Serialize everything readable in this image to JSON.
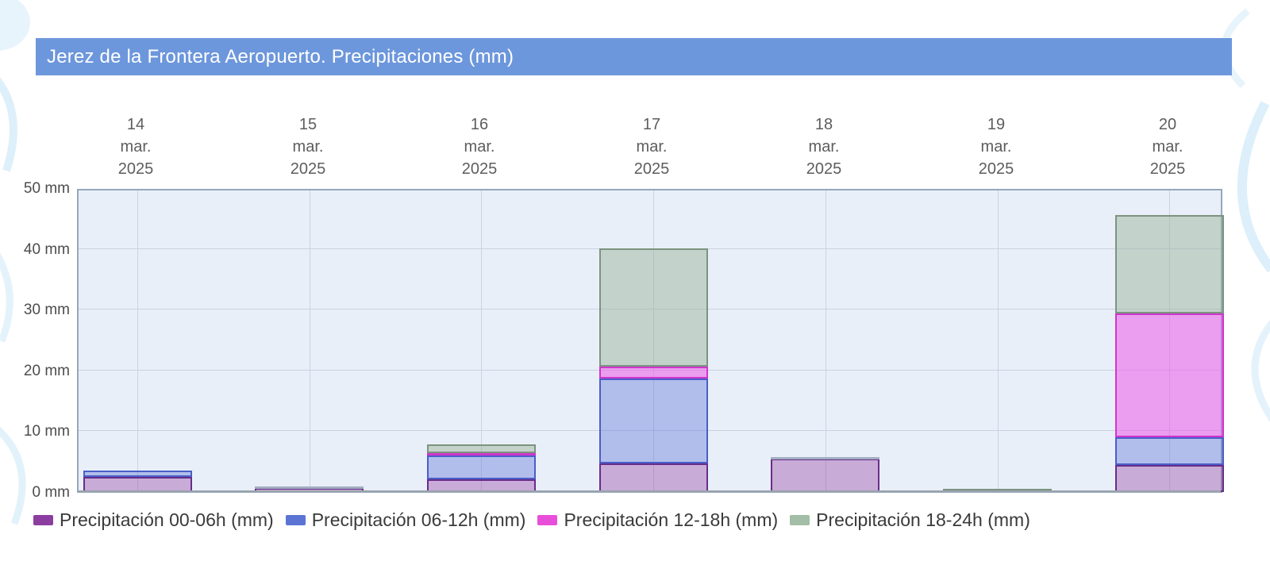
{
  "page": {
    "header_title": "Jerez de la Frontera Aeropuerto. Precipitaciones (mm)"
  },
  "colors": {
    "header_bg": "#6d97dc",
    "header_text": "#ffffff",
    "plot_bg": "#e9eff8",
    "grid": "#c9d3e2",
    "plot_border": "#96a7ba",
    "baseline": "#9aa3ab",
    "axis_text": "#4c4c4c",
    "date_text": "#5d5d5d",
    "legend_text": "#3a3a3a",
    "stack_cap": "#a3aec2",
    "deco_blue": "#ddeffa"
  },
  "chart_data": {
    "type": "bar",
    "stacked": true,
    "title": "Jerez de la Frontera Aeropuerto. Precipitaciones (mm)",
    "ylabel": "mm",
    "ylim": [
      0,
      50
    ],
    "yticks": [
      0,
      10,
      20,
      30,
      40,
      50
    ],
    "ytick_suffix": " mm",
    "grid": true,
    "legend_position": "bottom",
    "categories": [
      {
        "day": "14",
        "month": "mar.",
        "year": "2025"
      },
      {
        "day": "15",
        "month": "mar.",
        "year": "2025"
      },
      {
        "day": "16",
        "month": "mar.",
        "year": "2025"
      },
      {
        "day": "17",
        "month": "mar.",
        "year": "2025"
      },
      {
        "day": "18",
        "month": "mar.",
        "year": "2025"
      },
      {
        "day": "19",
        "month": "mar.",
        "year": "2025"
      },
      {
        "day": "20",
        "month": "mar.",
        "year": "2025"
      }
    ],
    "series": [
      {
        "name": "Precipitación 00-06h (mm)",
        "legend_color": "#8c3da0",
        "border_color": "#672d8a",
        "fill_color": "rgba(150,70,165,0.40)",
        "values": [
          2.5,
          0.6,
          2.1,
          4.7,
          5.5,
          0,
          4.4
        ]
      },
      {
        "name": "Precipitación 06-12h (mm)",
        "legend_color": "#5b74d4",
        "border_color": "#4a5ec8",
        "fill_color": "rgba(100,122,216,0.42)",
        "values": [
          1.0,
          0,
          3.9,
          14.0,
          0,
          0,
          4.6
        ]
      },
      {
        "name": "Precipitación 12-18h (mm)",
        "legend_color": "#e84fd9",
        "border_color": "#cf35cd",
        "fill_color": "rgba(236,90,232,0.55)",
        "values": [
          0,
          0,
          0.4,
          1.9,
          0,
          0,
          20.4
        ]
      },
      {
        "name": "Precipitación 18-24h (mm)",
        "legend_color": "#a3bda6",
        "border_color": "#7c947f",
        "fill_color": "rgba(150,175,150,0.45)",
        "values": [
          0,
          0,
          1.4,
          19.4,
          0,
          0.3,
          16.2
        ]
      }
    ],
    "stack_gray_caps": [
      false,
      true,
      false,
      false,
      true,
      false,
      false
    ]
  }
}
